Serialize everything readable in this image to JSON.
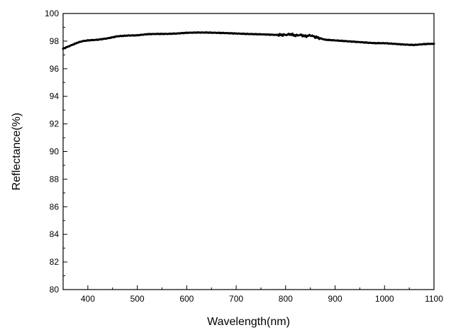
{
  "chart_data": {
    "type": "line",
    "title": "",
    "xlabel": "Wavelength(nm)",
    "ylabel": "Reflectance(%)",
    "xlim": [
      350,
      1100
    ],
    "ylim": [
      80,
      100
    ],
    "x_ticks": [
      400,
      500,
      600,
      700,
      800,
      900,
      1000,
      1100
    ],
    "y_ticks": [
      80,
      82,
      84,
      86,
      88,
      90,
      92,
      94,
      96,
      98,
      100
    ],
    "x_minor_step": 50,
    "y_minor_step": 1,
    "grid": false,
    "legend": "none",
    "line_color": "#000000",
    "series": [
      {
        "x": [
          350,
          360,
          370,
          380,
          390,
          400,
          420,
          440,
          460,
          480,
          500,
          520,
          540,
          560,
          580,
          600,
          620,
          640,
          660,
          680,
          700,
          720,
          740,
          760,
          780,
          800,
          810,
          820,
          830,
          840,
          850,
          860,
          870,
          880,
          900,
          920,
          940,
          960,
          980,
          1000,
          1020,
          1040,
          1060,
          1080,
          1090,
          1100
        ],
        "y": [
          97.45,
          97.6,
          97.75,
          97.9,
          98.0,
          98.05,
          98.1,
          98.2,
          98.35,
          98.4,
          98.42,
          98.5,
          98.52,
          98.52,
          98.55,
          98.6,
          98.62,
          98.62,
          98.6,
          98.58,
          98.55,
          98.52,
          98.5,
          98.48,
          98.45,
          98.45,
          98.5,
          98.4,
          98.45,
          98.35,
          98.42,
          98.3,
          98.2,
          98.1,
          98.05,
          98.0,
          97.95,
          97.9,
          97.85,
          97.85,
          97.8,
          97.75,
          97.72,
          97.78,
          97.8,
          97.8
        ]
      }
    ]
  }
}
